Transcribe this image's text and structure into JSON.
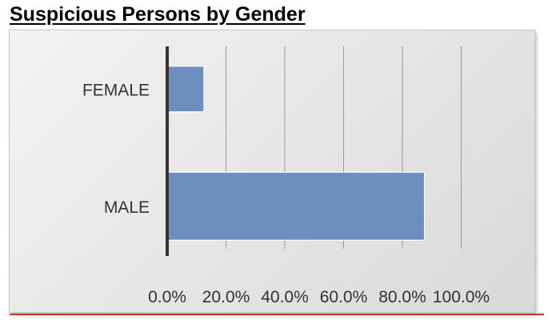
{
  "title": "Suspicious Persons by Gender",
  "chart_data": {
    "type": "bar",
    "orientation": "horizontal",
    "categories": [
      "FEMALE",
      "MALE"
    ],
    "values": [
      12.5,
      87.5
    ],
    "unit": "%",
    "xlim": [
      0,
      100
    ],
    "xticks": [
      "0.0%",
      "20.0%",
      "40.0%",
      "60.0%",
      "80.0%",
      "100.0%"
    ],
    "grid": true,
    "legend": "none",
    "colors": {
      "bar": "#6d8fbf",
      "bar_border": "#4f6f9f",
      "grid": "#9a9a9a",
      "axis": "#333333",
      "accent_rule": "#c0392b"
    }
  }
}
